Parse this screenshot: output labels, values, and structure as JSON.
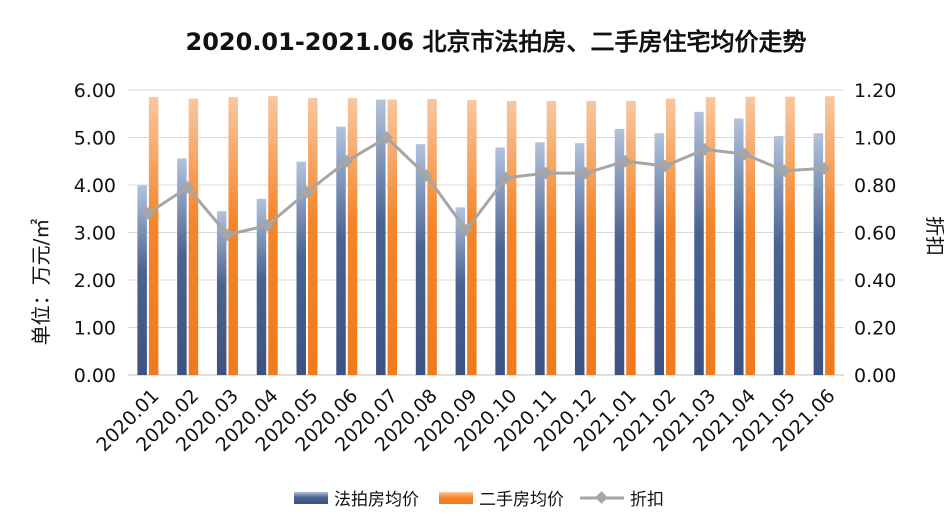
{
  "chart_data": {
    "type": "bar",
    "title": "2020.01-2021.06 北京市法拍房、二手房住宅均价走势",
    "ylabel": "单位：万元/㎡",
    "y2label": "折扣",
    "ylim": [
      0,
      6
    ],
    "y2lim": [
      0,
      1.2
    ],
    "yticks": [
      "0.00",
      "1.00",
      "2.00",
      "3.00",
      "4.00",
      "5.00",
      "6.00"
    ],
    "y2ticks": [
      "0.00",
      "0.20",
      "0.40",
      "0.60",
      "0.80",
      "1.00",
      "1.20"
    ],
    "categories": [
      "2020.01",
      "2020.02",
      "2020.03",
      "2020.04",
      "2020.05",
      "2020.06",
      "2020.07",
      "2020.08",
      "2020.09",
      "2020.10",
      "2020.11",
      "2020.12",
      "2021.01",
      "2021.02",
      "2021.03",
      "2021.04",
      "2021.05",
      "2021.06"
    ],
    "series": [
      {
        "name": "法拍房均价",
        "type": "bar",
        "axis": "left",
        "color": "#4a6391",
        "values": [
          3.99,
          4.56,
          3.45,
          3.71,
          4.49,
          5.23,
          5.8,
          4.86,
          3.53,
          4.79,
          4.9,
          4.88,
          5.18,
          5.09,
          5.54,
          5.4,
          5.03,
          5.09
        ]
      },
      {
        "name": "二手房均价",
        "type": "bar",
        "axis": "left",
        "color": "#f4852a",
        "values": [
          5.85,
          5.82,
          5.85,
          5.87,
          5.83,
          5.83,
          5.8,
          5.81,
          5.79,
          5.77,
          5.77,
          5.77,
          5.77,
          5.82,
          5.85,
          5.86,
          5.86,
          5.87
        ]
      },
      {
        "name": "折扣",
        "type": "line",
        "axis": "right",
        "color": "#a6a6a6",
        "values": [
          0.68,
          0.79,
          0.59,
          0.63,
          0.77,
          0.9,
          1.0,
          0.84,
          0.61,
          0.83,
          0.85,
          0.85,
          0.9,
          0.88,
          0.95,
          0.93,
          0.86,
          0.87
        ]
      }
    ],
    "legend_position": "bottom",
    "grid": true
  }
}
